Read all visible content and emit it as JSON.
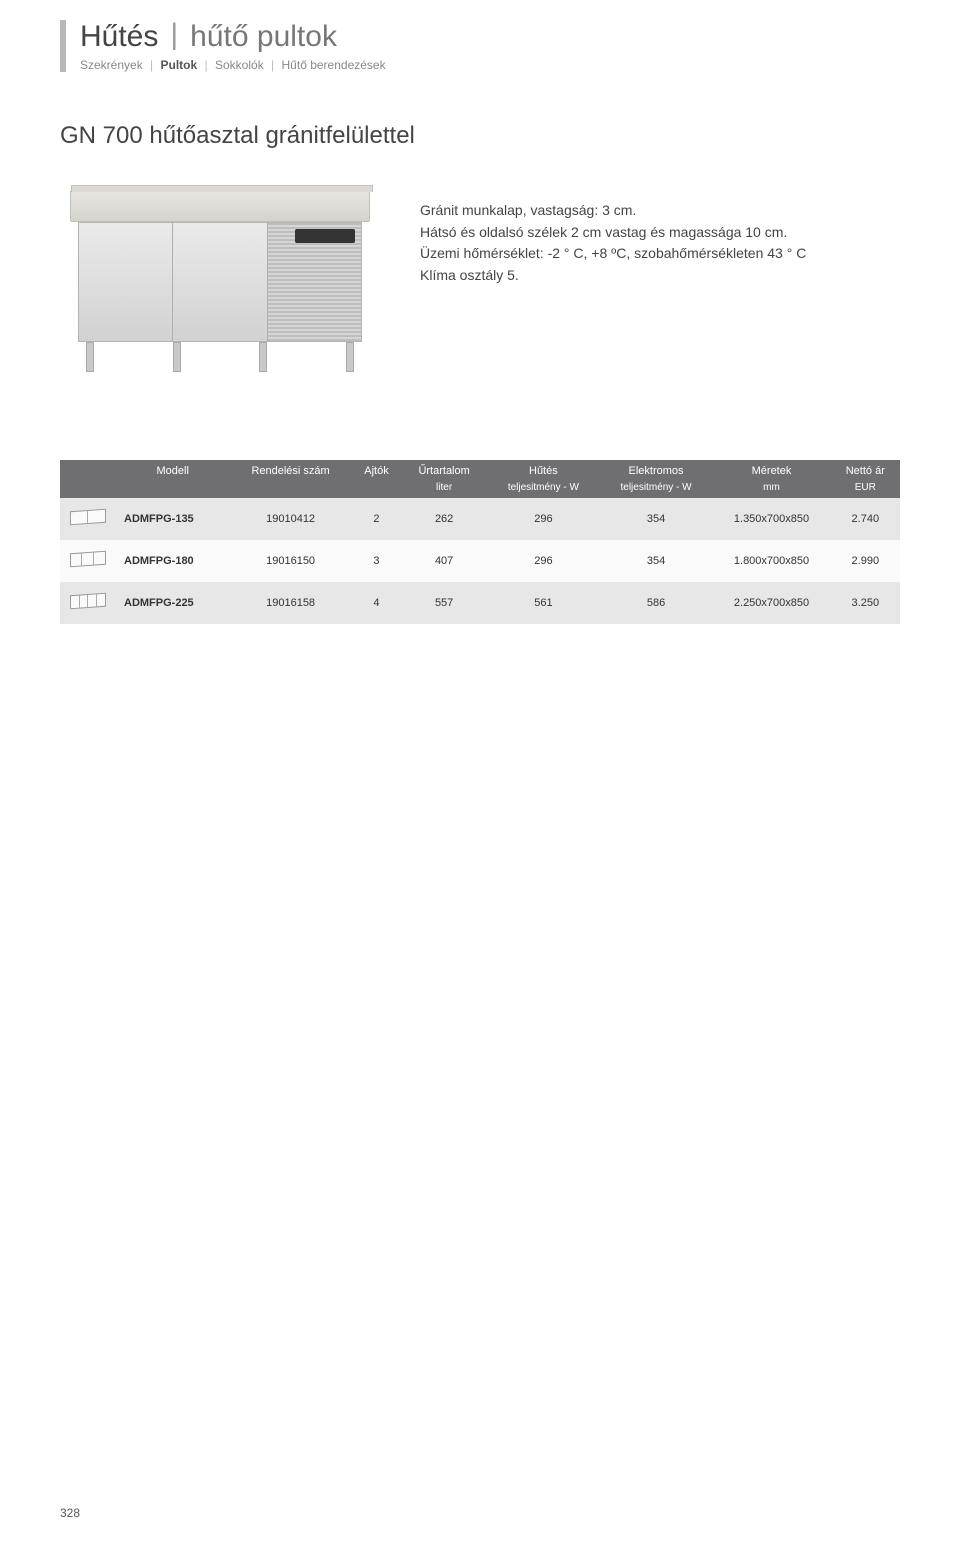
{
  "header": {
    "title_main": "Hűtés",
    "title_sub": "hűtő pultok",
    "crumbs": [
      "Szekrények",
      "Pultok",
      "Sokkolók",
      "Hűtő berendezések"
    ],
    "active_crumb_index": 1
  },
  "section_title": "GN 700 hűtőasztal gránitfelülettel",
  "description": {
    "line1": "Gránit munkalap, vastagság: 3 cm.",
    "line2": "Hátsó és oldalsó szélek 2 cm vastag és magassága 10 cm.",
    "line3": "Üzemi hőmérséklet: -2 ° C, +8 ºC, szobahőmérsékleten 43 ° C",
    "line4": "Klíma osztály 5."
  },
  "table": {
    "header_row1": [
      "",
      "Modell",
      "Rendelési szám",
      "Ajtók",
      "Űrtartalom",
      "Hűtés",
      "Elektromos",
      "Méretek",
      "Nettó ár"
    ],
    "header_row2": [
      "",
      "",
      "",
      "",
      "liter",
      "teljesitmény - W",
      "teljesitmény - W",
      "mm",
      "EUR"
    ],
    "rows": [
      {
        "doors": 2,
        "model": "ADMFPG-135",
        "order": "19010412",
        "ajtok": "2",
        "urtartalom": "262",
        "hutes": "296",
        "elektromos": "354",
        "meretek": "1.350x700x850",
        "ar": "2.740"
      },
      {
        "doors": 3,
        "model": "ADMFPG-180",
        "order": "19016150",
        "ajtok": "3",
        "urtartalom": "407",
        "hutes": "296",
        "elektromos": "354",
        "meretek": "1.800x700x850",
        "ar": "2.990"
      },
      {
        "doors": 4,
        "model": "ADMFPG-225",
        "order": "19016158",
        "ajtok": "4",
        "urtartalom": "557",
        "hutes": "561",
        "elektromos": "586",
        "meretek": "2.250x700x850",
        "ar": "3.250"
      }
    ]
  },
  "page_number": "328",
  "colors": {
    "header_bg": "#6f6f71",
    "row_odd": "#e7e7e8",
    "row_even": "#fafafa"
  }
}
